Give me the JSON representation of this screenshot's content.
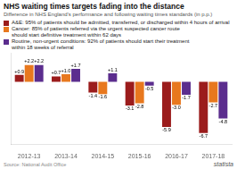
{
  "chart_data": {
    "type": "bar",
    "title": "NHS waiting times targets fading into the distance",
    "subtitle": "Difference in NHS England’s performance and following waiting times standards (in p.p.)",
    "categories": [
      "2012-13",
      "2013-14",
      "2014-15",
      "2015-16",
      "2016-17",
      "2017-18"
    ],
    "series": [
      {
        "name": "A&E: 95% of patients should be admitted, transferred, or discharged within 4 hours of arrival",
        "color": "#9b1c1c",
        "values": [
          0.9,
          0.7,
          -1.4,
          -3.1,
          -5.9,
          -6.7
        ],
        "value_labels": [
          "+0.9",
          "+0.7",
          "-1.4",
          "-3.1",
          "-5.9",
          "-6.7"
        ]
      },
      {
        "name": "Cancer: 85% of patients referred via the urgent suspected cancer route\nshould start definitive treatment within 62 days",
        "color": "#e8781e",
        "values": [
          2.2,
          1.0,
          -1.6,
          -2.8,
          -3.0,
          -2.7
        ],
        "value_labels": [
          "+2.2",
          "+1.0",
          "-1.6",
          "-2.8",
          "-3.0",
          "-2.7"
        ]
      },
      {
        "name": "Routine, non-urgent conditions: 92% of patients should start their treatment\nwithin 18 weeks of referral",
        "color": "#5b2d8e",
        "values": [
          2.2,
          1.7,
          1.1,
          -0.5,
          -1.7,
          -4.8
        ],
        "value_labels": [
          "+2.2",
          "+1.7",
          "+1.1",
          "-0.5",
          "-1.7",
          "-4.8"
        ]
      }
    ],
    "ylim": [
      -8.2,
      3.8
    ],
    "grid": false,
    "legend": "top",
    "data_labels": true,
    "tick_labels": "x",
    "source": "Source: National Audit Office",
    "annotations": [
      "statista"
    ]
  }
}
